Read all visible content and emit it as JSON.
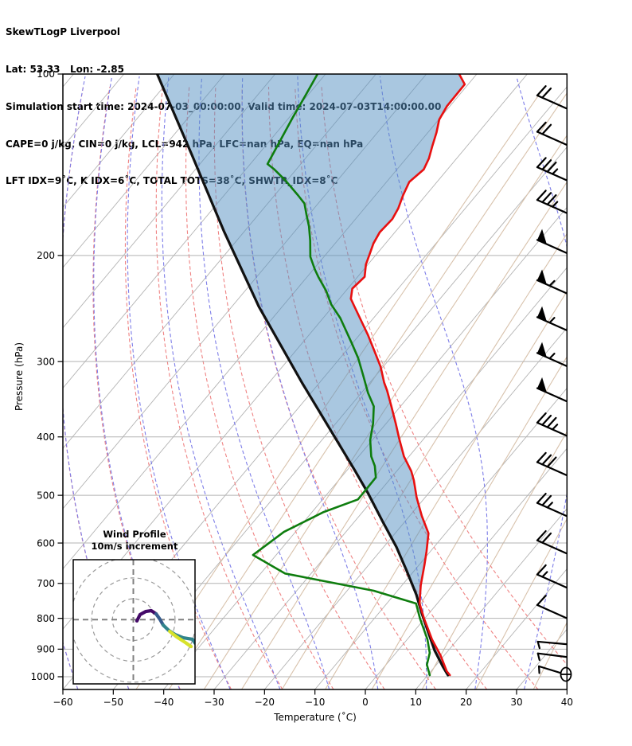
{
  "header": {
    "title": "SkewTLogP Liverpool",
    "lines": [
      "Lat: 53.33   Lon: -2.85",
      "Simulation start time: 2024-07-03_00:00:00, Valid time: 2024-07-03T14:00:00.00",
      "CAPE=0 j/kg, CIN=0 j/kg, LCL=942 hPa, LFC=nan hPa, EQ=nan hPa",
      "LFT IDX=9˚C, K IDX=6˚C, TOTAL TOTS=38˚C, SHWTR_IDX=8˚C"
    ]
  },
  "axes": {
    "x_label": "Temperature (˚C)",
    "y_label": "Pressure (hPa)",
    "x_ticks": [
      -60,
      -50,
      -40,
      -30,
      -20,
      -10,
      0,
      10,
      20,
      30,
      40
    ],
    "y_ticks": [
      100,
      200,
      300,
      400,
      500,
      600,
      700,
      800,
      900,
      1000
    ],
    "x_range_c": [
      -60,
      40
    ],
    "p_range_hpa": [
      100,
      1050
    ],
    "grid": true
  },
  "chart_data": {
    "type": "line",
    "subtype": "skewt-logp",
    "title": "SkewTLogP Liverpool",
    "xlabel": "Temperature (˚C)",
    "ylabel": "Pressure (hPa)",
    "series": [
      {
        "name": "temperature",
        "color": "#e81010",
        "p": [
          100,
          104,
          113,
          119,
          125,
          132,
          138,
          144,
          151,
          159,
          167,
          174,
          183,
          191,
          198,
          207,
          217,
          227,
          236,
          242,
          254,
          271,
          287,
          306,
          325,
          335,
          356,
          380,
          402,
          431,
          456,
          472,
          504,
          541,
          578,
          619,
          653,
          705,
          756,
          801,
          867,
          921,
          979,
          994
        ],
        "t": [
          -83.5,
          -80.7,
          -80.6,
          -79.9,
          -78.3,
          -76.8,
          -75.5,
          -74.7,
          -75.5,
          -74.5,
          -73.3,
          -72.7,
          -73.0,
          -72.4,
          -71.5,
          -70.4,
          -68.6,
          -69.1,
          -67.7,
          -66.0,
          -62.7,
          -58.3,
          -54.6,
          -50.5,
          -47.2,
          -45.3,
          -41.8,
          -38.1,
          -35.0,
          -31.0,
          -27.1,
          -25.1,
          -21.7,
          -17.6,
          -13.4,
          -10.8,
          -8.9,
          -6.3,
          -3.5,
          -0.1,
          4.9,
          9.2,
          13.1,
          14.4
        ]
      },
      {
        "name": "dewpoint",
        "color": "#0e7d0e",
        "p": [
          100,
          108,
          118,
          132,
          141,
          144,
          150,
          159,
          164,
          171,
          179,
          189,
          201,
          211,
          217,
          229,
          241,
          254,
          279,
          296,
          317,
          338,
          356,
          380,
          405,
          431,
          447,
          467,
          508,
          533,
          575,
          628,
          674,
          720,
          756,
          801,
          867,
          913,
          955,
          994
        ],
        "t": [
          -111.6,
          -110.5,
          -109.3,
          -107.6,
          -106.6,
          -104.3,
          -100.4,
          -95.3,
          -92.7,
          -90.5,
          -88.0,
          -85.4,
          -82.7,
          -79.7,
          -77.8,
          -73.9,
          -70.7,
          -66.6,
          -60.3,
          -56.4,
          -52.4,
          -48.7,
          -45.3,
          -42.6,
          -40.4,
          -37.5,
          -35.2,
          -33.1,
          -33.0,
          -37.7,
          -42.3,
          -44.6,
          -35.2,
          -14.7,
          -4.2,
          -0.9,
          4.0,
          6.7,
          8.1,
          10.4
        ]
      },
      {
        "name": "parcel",
        "color": "#111111",
        "p": [
          100,
          136,
          182,
          243,
          325,
          453,
          497,
          553,
          609,
          667,
          731,
          784,
          841,
          905,
          961,
          994
        ],
        "t": [
          -143.4,
          -123.2,
          -104.2,
          -84.7,
          -63.5,
          -38.7,
          -31.9,
          -24.4,
          -17.5,
          -11.5,
          -5.6,
          -1.5,
          2.8,
          7.3,
          11.5,
          14.0
        ]
      }
    ],
    "shading": {
      "between": [
        "parcel",
        "temperature"
      ],
      "color": "#538fc1",
      "opacity": 0.5
    },
    "wind_barbs": [
      {
        "p": 114,
        "full": 2
      },
      {
        "p": 131,
        "full": 2
      },
      {
        "p": 150,
        "full": 3,
        "half": 1
      },
      {
        "p": 170,
        "full": 3,
        "half": 1
      },
      {
        "p": 198,
        "pennants": 1
      },
      {
        "p": 231,
        "pennants": 1,
        "half": 1
      },
      {
        "p": 266,
        "pennants": 1,
        "half": 1
      },
      {
        "p": 305,
        "pennants": 1,
        "half": 1
      },
      {
        "p": 349,
        "pennants": 1
      },
      {
        "p": 398,
        "full": 3,
        "half": 1
      },
      {
        "p": 463,
        "full": 3
      },
      {
        "p": 541,
        "full": 2,
        "half": 1
      },
      {
        "p": 624,
        "full": 2
      },
      {
        "p": 711,
        "full": 1,
        "half": 1
      },
      {
        "p": 799,
        "full": 1
      },
      {
        "p": 883,
        "half": 1,
        "rot": 5,
        "flip": true
      },
      {
        "p": 927,
        "half": 1,
        "rot": 7,
        "flip": true
      },
      {
        "p": 992,
        "half": 1,
        "rot": 17,
        "flip": true,
        "surface_marker": true
      }
    ],
    "hodograph": {
      "rings_ms": [
        10,
        20,
        30
      ],
      "segments": [
        {
          "color": "#440a68",
          "u": [
            1.7,
            3.2,
            5.9,
            8.6,
            10.9
          ],
          "v": [
            -0.6,
            2.4,
            3.9,
            4.3,
            2.8
          ]
        },
        {
          "color": "#365c8d",
          "u": [
            10.9,
            12.8,
            14.3
          ],
          "v": [
            2.8,
            0.1,
            -2.6
          ]
        },
        {
          "color": "#31848b",
          "u": [
            14.3,
            17.0,
            20.0,
            23.9,
            28.4,
            29.6
          ],
          "v": [
            -2.6,
            -5.2,
            -7.1,
            -8.7,
            -9.4,
            -11.3
          ]
        },
        {
          "color": "#d7e22b",
          "u": [
            17.4,
            20.8,
            25.0,
            27.7
          ],
          "v": [
            -5.6,
            -8.3,
            -11.0,
            -12.9
          ]
        }
      ]
    },
    "background_lines": {
      "isotherms_c": {
        "from": -160,
        "to": 40,
        "step": 10
      },
      "dry_adiabats_c": {
        "from": -60,
        "to": 40,
        "step": 10
      },
      "moist_adiabats_c": {
        "from": -60,
        "to": 40,
        "step": 10
      },
      "mixing_ratio_gkg": [
        0.0625,
        0.125,
        0.25,
        0.5,
        1,
        2,
        4,
        8,
        16,
        32,
        64
      ]
    }
  },
  "inset": {
    "title": "Wind Profile",
    "subtitle": "10m/s increment"
  },
  "style": {
    "isotherm_color": "#b3b3b3",
    "grid_color": "#b3b3b3",
    "dry_adiabat_color": "#ef8282",
    "moist_adiabat_color": "#7d7de8",
    "mixing_ratio_color": "#d8c2ac",
    "spine_color": "#000000",
    "fill_color": "#538fc1",
    "barb_color": "#000000",
    "hodo_ring_color": "#999999"
  }
}
